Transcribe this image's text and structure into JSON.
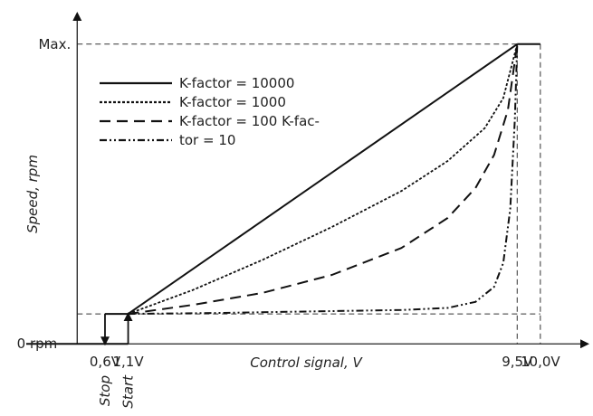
{
  "chart_data": {
    "type": "line",
    "title": "",
    "xlabel": "Control signal, V",
    "ylabel": "Speed, rpm",
    "x_ticks": [
      {
        "value": 0.6,
        "label": "0,6V",
        "sub_label": "Stop"
      },
      {
        "value": 1.1,
        "label": "1,1V",
        "sub_label": "Start"
      },
      {
        "value": 9.5,
        "label": "9,5V"
      },
      {
        "value": 10.0,
        "label": "10,0V"
      }
    ],
    "y_ticks": [
      {
        "value": 0,
        "label": "0 rpm"
      },
      {
        "value": 1,
        "label": "Max."
      }
    ],
    "xlim": [
      -1.1,
      11.0
    ],
    "ylim": [
      -0.12,
      1.12
    ],
    "min_speed_level": 0.1,
    "legend": {
      "placement": "top-left",
      "lines": [
        "K-factor = 10000",
        "K-factor = 1000",
        "K-factor = 100 K-fac-",
        "tor = 10"
      ]
    },
    "series": [
      {
        "label": "K-factor = 10000",
        "k": 10000,
        "dash": "solid",
        "x": [
          1.1,
          9.5
        ],
        "y": [
          0.1,
          1.0
        ]
      },
      {
        "label": "K-factor = 1000",
        "k": 1000,
        "dash": "dotted",
        "x": [
          1.1,
          2.5,
          4.0,
          5.5,
          7.0,
          8.0,
          8.8,
          9.2,
          9.5
        ],
        "y": [
          0.1,
          0.18,
          0.28,
          0.39,
          0.51,
          0.61,
          0.72,
          0.82,
          1.0
        ]
      },
      {
        "label": "K-factor = 100",
        "k": 100,
        "dash": "dashed",
        "x": [
          1.1,
          2.5,
          4.0,
          5.5,
          7.0,
          8.0,
          8.6,
          9.0,
          9.3,
          9.5
        ],
        "y": [
          0.1,
          0.13,
          0.17,
          0.23,
          0.32,
          0.42,
          0.52,
          0.63,
          0.78,
          1.0
        ]
      },
      {
        "label": "K-factor = 10",
        "k": 10,
        "dash": "dash-dot",
        "x": [
          1.1,
          3.0,
          5.0,
          7.0,
          8.0,
          8.6,
          9.0,
          9.2,
          9.35,
          9.45,
          9.5
        ],
        "y": [
          0.1,
          0.103,
          0.108,
          0.113,
          0.12,
          0.14,
          0.19,
          0.27,
          0.45,
          0.75,
          1.0
        ]
      }
    ],
    "hysteresis_segments": [
      {
        "x": [
          -1.1,
          0.6
        ],
        "y": [
          0.0,
          0.0
        ]
      },
      {
        "x": [
          0.6,
          1.1
        ],
        "y": [
          0.0,
          0.0
        ]
      },
      {
        "x": [
          0.6,
          1.1
        ],
        "y": [
          0.1,
          0.1
        ]
      },
      {
        "x": [
          9.5,
          10.0
        ],
        "y": [
          1.0,
          1.0
        ]
      }
    ],
    "arrows": [
      {
        "x": 0.6,
        "from": 0.1,
        "to": 0.0,
        "direction": "down"
      },
      {
        "x": 1.1,
        "from": 0.0,
        "to": 0.1,
        "direction": "up"
      }
    ],
    "grid": false
  }
}
